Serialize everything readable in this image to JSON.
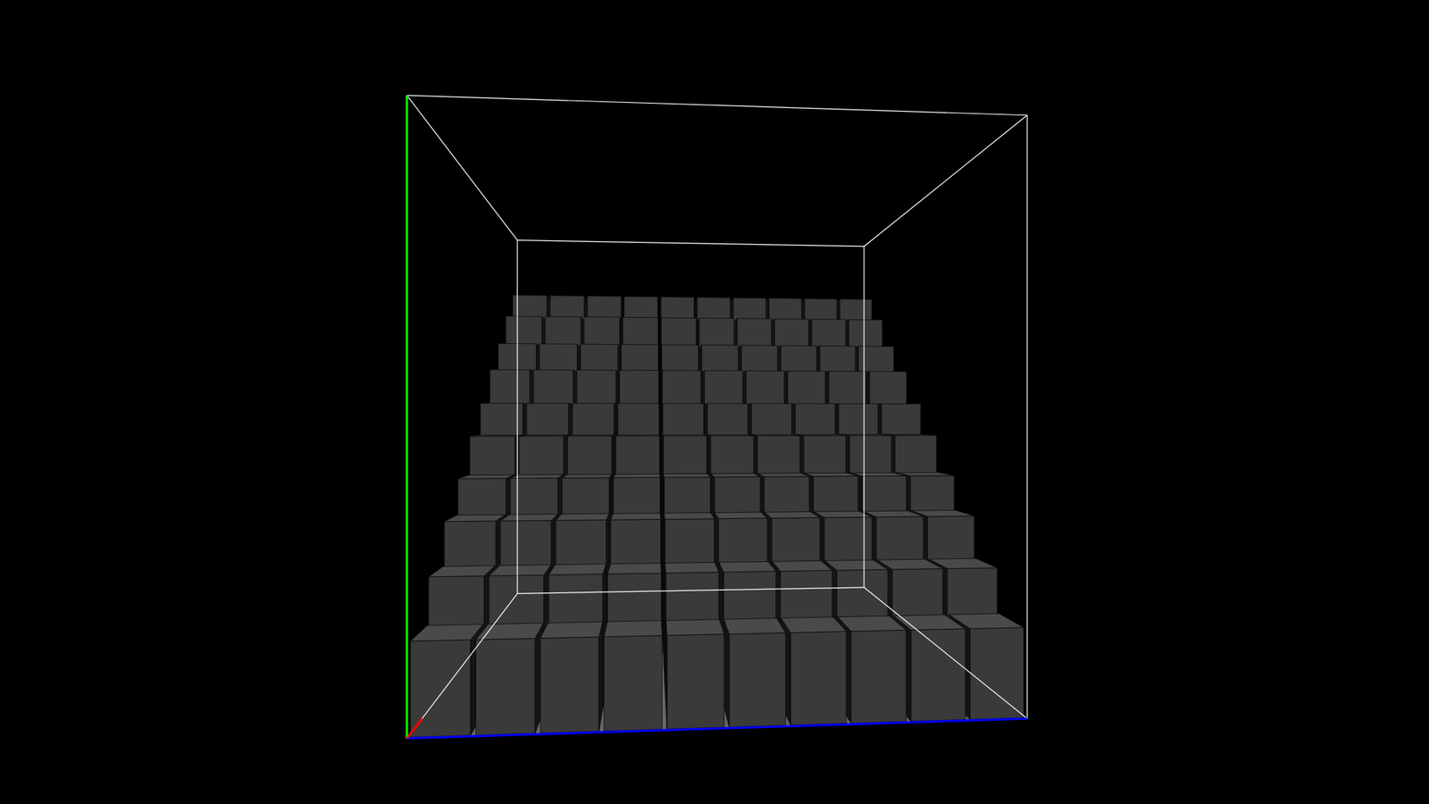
{
  "chart_data": {
    "type": "bar3d",
    "color": "#3a3a3a",
    "tick_labels": false,
    "ylim": [
      0,
      1
    ],
    "values": [
      [
        0.15,
        0.15,
        0.15,
        0.15,
        0.15,
        0.15,
        0.15,
        0.15,
        0.15,
        0.15
      ],
      [
        0.23,
        0.23,
        0.23,
        0.23,
        0.23,
        0.23,
        0.23,
        0.23,
        0.23,
        0.23
      ],
      [
        0.31,
        0.31,
        0.31,
        0.31,
        0.31,
        0.31,
        0.31,
        0.31,
        0.31,
        0.31
      ],
      [
        0.38,
        0.38,
        0.38,
        0.38,
        0.38,
        0.38,
        0.38,
        0.38,
        0.38,
        0.38
      ],
      [
        0.46,
        0.46,
        0.46,
        0.46,
        0.46,
        0.46,
        0.46,
        0.46,
        0.46,
        0.46
      ],
      [
        0.53,
        0.53,
        0.53,
        0.53,
        0.53,
        0.53,
        0.53,
        0.53,
        0.53,
        0.53
      ],
      [
        0.61,
        0.61,
        0.61,
        0.61,
        0.61,
        0.61,
        0.61,
        0.61,
        0.61,
        0.61
      ],
      [
        0.68,
        0.68,
        0.68,
        0.68,
        0.68,
        0.68,
        0.68,
        0.68,
        0.68,
        0.68
      ],
      [
        0.76,
        0.76,
        0.76,
        0.76,
        0.76,
        0.76,
        0.76,
        0.76,
        0.76,
        0.76
      ],
      [
        0.83,
        0.83,
        0.83,
        0.83,
        0.83,
        0.83,
        0.83,
        0.83,
        0.83,
        0.83
      ]
    ]
  }
}
